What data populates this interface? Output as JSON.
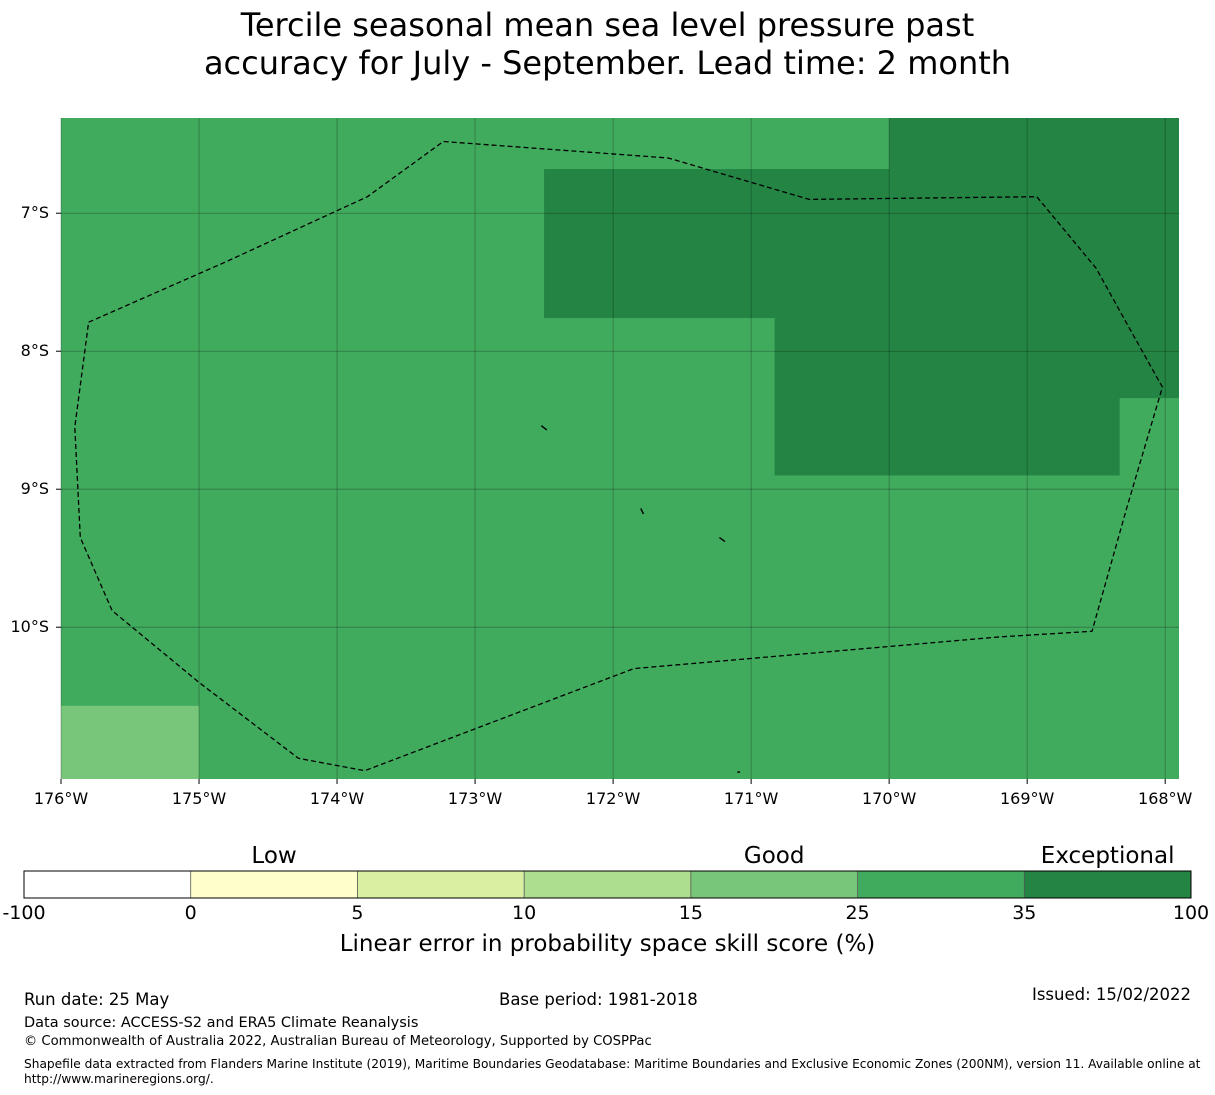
{
  "title": {
    "line1": "Tercile seasonal mean sea level pressure past",
    "line2": "accuracy for July - September. Lead time: 2 month"
  },
  "map": {
    "lat_range": [
      -11.1,
      -6.31
    ],
    "lon_range": [
      -176,
      -167.9
    ],
    "lat_ticks": [
      {
        "value": -7,
        "label": "7°S"
      },
      {
        "value": -8,
        "label": "8°S"
      },
      {
        "value": -9,
        "label": "9°S"
      },
      {
        "value": -10,
        "label": "10°S"
      }
    ],
    "lon_ticks": [
      {
        "value": -176,
        "label": "176°W"
      },
      {
        "value": -175,
        "label": "175°W"
      },
      {
        "value": -174,
        "label": "174°W"
      },
      {
        "value": -173,
        "label": "173°W"
      },
      {
        "value": -172,
        "label": "172°W"
      },
      {
        "value": -171,
        "label": "171°W"
      },
      {
        "value": -170,
        "label": "170°W"
      },
      {
        "value": -169,
        "label": "169°W"
      },
      {
        "value": -168,
        "label": "168°W"
      }
    ],
    "background_value_color": "#41ab5d",
    "cells": [
      {
        "lon": [
          -176,
          -175
        ],
        "lat": [
          -11.1,
          -10.57
        ],
        "color": "#78c679",
        "category": "15-25"
      },
      {
        "lon": [
          -172.5,
          -170
        ],
        "lat": [
          -7.76,
          -6.68
        ],
        "color": "#238443",
        "category": "35-100"
      },
      {
        "lon": [
          -170,
          -167.9
        ],
        "lat": [
          -8.34,
          -6.31
        ],
        "color": "#238443",
        "category": "35-100"
      },
      {
        "lon": [
          -170.83,
          -168.33
        ],
        "lat": [
          -8.9,
          -7.76
        ],
        "color": "#238443",
        "category": "35-100"
      }
    ],
    "eez_boundary": [
      [
        -175.8,
        -7.79
      ],
      [
        -174.8,
        -7.35
      ],
      [
        -173.78,
        -6.88
      ],
      [
        -173.23,
        -6.48
      ],
      [
        -171.6,
        -6.6
      ],
      [
        -170.58,
        -6.9
      ],
      [
        -168.93,
        -6.88
      ],
      [
        -168.5,
        -7.4
      ],
      [
        -168.25,
        -7.85
      ],
      [
        -168.02,
        -8.26
      ],
      [
        -168.28,
        -9.14
      ],
      [
        -168.53,
        -10.03
      ],
      [
        -169.2,
        -10.07
      ],
      [
        -171.85,
        -10.3
      ],
      [
        -173.8,
        -11.04
      ],
      [
        -174.28,
        -10.95
      ],
      [
        -175.0,
        -10.4
      ],
      [
        -175.63,
        -9.88
      ],
      [
        -175.86,
        -9.35
      ],
      [
        -175.9,
        -8.55
      ],
      [
        -175.8,
        -7.79
      ]
    ],
    "islands": [
      {
        "points": [
          [
            -172.52,
            -8.54
          ],
          [
            -172.48,
            -8.57
          ]
        ]
      },
      {
        "points": [
          [
            -171.8,
            -9.14
          ],
          [
            -171.78,
            -9.18
          ]
        ]
      },
      {
        "points": [
          [
            -171.23,
            -9.35
          ],
          [
            -171.19,
            -9.38
          ]
        ]
      },
      {
        "points": [
          [
            -171.1,
            -11.05
          ],
          [
            -171.08,
            -11.05
          ]
        ]
      }
    ]
  },
  "colorbar": {
    "categories": [
      {
        "label": "Low",
        "value": 0
      },
      {
        "label": "Good",
        "value": 15
      },
      {
        "label": "Exceptional",
        "value": 35
      }
    ],
    "bins": [
      {
        "from": -100,
        "to": 0,
        "color": "#ffffff"
      },
      {
        "from": 0,
        "to": 5,
        "color": "#ffffcc"
      },
      {
        "from": 5,
        "to": 10,
        "color": "#d9f0a3"
      },
      {
        "from": 10,
        "to": 15,
        "color": "#addd8e"
      },
      {
        "from": 15,
        "to": 25,
        "color": "#78c679"
      },
      {
        "from": 25,
        "to": 35,
        "color": "#41ab5d"
      },
      {
        "from": 35,
        "to": 100,
        "color": "#238443"
      }
    ],
    "tick_labels": [
      "-100",
      "0",
      "5",
      "10",
      "15",
      "25",
      "35",
      "100"
    ],
    "title": "Linear error in probability space skill score (%)"
  },
  "footer": {
    "run_date": "Run date: 25 May",
    "base_period": "Base period: 1981-2018",
    "issued": "Issued: 15/02/2022",
    "data_source": "Data source: ACCESS-S2 and ERA5 Climate Reanalysis",
    "copyright": "© Commonwealth of Australia 2022, Australian Bureau of Meteorology, Supported by COSPPac",
    "shapefile_line1": "Shapefile data extracted from Flanders Marine Institute (2019), Maritime Boundaries Geodatabase: Maritime Boundaries and Exclusive Economic Zones (200NM), version 11. Available online at",
    "shapefile_line2": "http://www.marineregions.org/."
  }
}
